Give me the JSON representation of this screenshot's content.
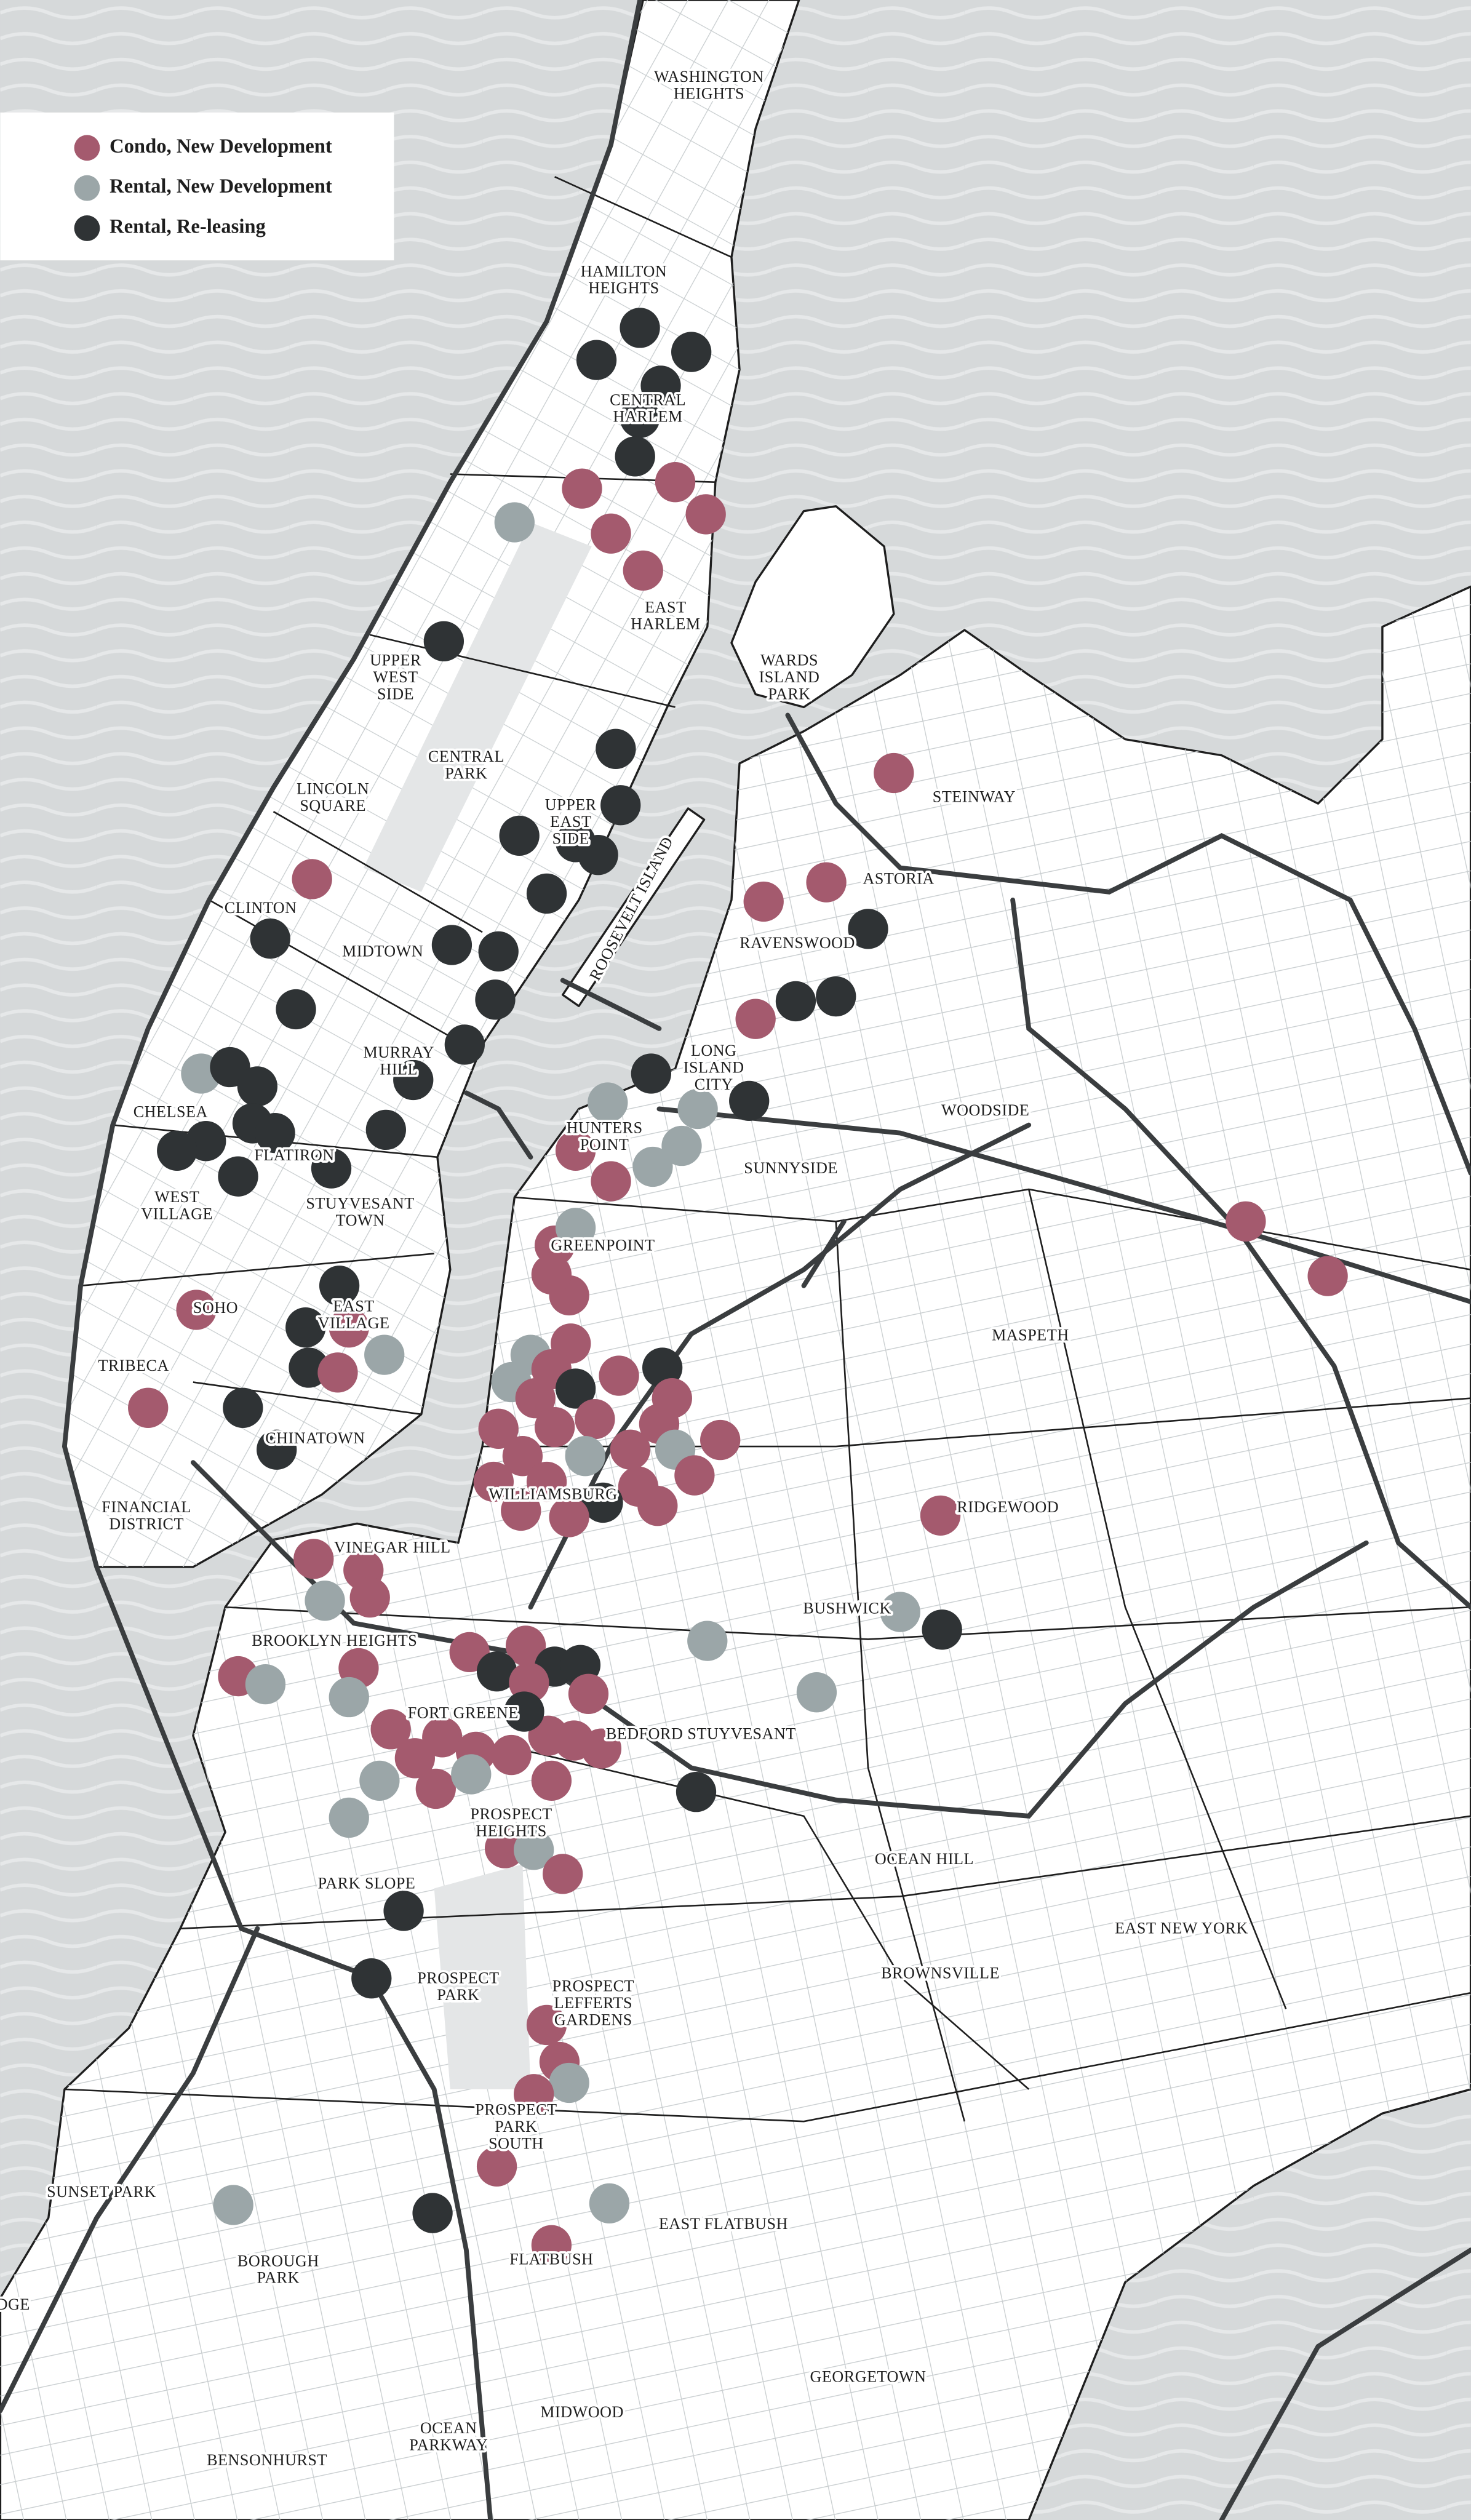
{
  "legend": [
    {
      "label": "Condo, New Development",
      "color": "#a45a6e"
    },
    {
      "label": "Rental, New Development",
      "color": "#9ba6a8"
    },
    {
      "label": "Rental, Re-leasing",
      "color": "#2f3335"
    }
  ],
  "neighborhoods": [
    [
      "WASHINGTON",
      "HEIGHTS"
    ],
    [
      "HAMILTON",
      "HEIGHTS"
    ],
    [
      "CENTRAL",
      "HARLEM"
    ],
    [
      "EAST",
      "HARLEM"
    ],
    [
      "UPPER",
      "WEST",
      "SIDE"
    ],
    [
      "CENTRAL",
      "PARK"
    ],
    [
      "WARDS",
      "ISLAND",
      "PARK"
    ],
    [
      "LINCOLN",
      "SQUARE"
    ],
    [
      "UPPER",
      "EAST",
      "SIDE"
    ],
    [
      "STEINWAY"
    ],
    [
      "ASTORIA"
    ],
    [
      "CLINTON"
    ],
    [
      "RAVENSWOOD"
    ],
    [
      "MIDTOWN"
    ],
    [
      "ROOSEVELT ISLAND"
    ],
    [
      "MURRAY",
      "HILL"
    ],
    [
      "LONG",
      "ISLAND",
      "CITY"
    ],
    [
      "CHELSEA"
    ],
    [
      "WOODSIDE"
    ],
    [
      "FLATIRON"
    ],
    [
      "HUNTERS",
      "POINT"
    ],
    [
      "SUNNYSIDE"
    ],
    [
      "WEST",
      "VILLAGE"
    ],
    [
      "STUYVESANT",
      "TOWN"
    ],
    [
      "GREENPOINT"
    ],
    [
      "SOHO"
    ],
    [
      "EAST",
      "VILLAGE"
    ],
    [
      "MASPETH"
    ],
    [
      "TRIBECA"
    ],
    [
      "CHINATOWN"
    ],
    [
      "WILLIAMSBURG"
    ],
    [
      "FINANCIAL",
      "DISTRICT"
    ],
    [
      "RIDGEWOOD"
    ],
    [
      "VINEGAR HILL"
    ],
    [
      "BUSHWICK"
    ],
    [
      "BROOKLYN HEIGHTS"
    ],
    [
      "FORT GREENE"
    ],
    [
      "BEDFORD STUYVESANT"
    ],
    [
      "PROSPECT",
      "HEIGHTS"
    ],
    [
      "OCEAN HILL"
    ],
    [
      "PARK SLOPE"
    ],
    [
      "EAST NEW YORK"
    ],
    [
      "PROSPECT",
      "PARK"
    ],
    [
      "BROWNSVILLE"
    ],
    [
      "PROSPECT",
      "LEFFERTS",
      "GARDENS"
    ],
    [
      "PROSPECT",
      "PARK",
      "SOUTH"
    ],
    [
      "SUNSET PARK"
    ],
    [
      "EAST FLATBUSH"
    ],
    [
      "BOROUGH",
      "PARK"
    ],
    [
      "FLATBUSH"
    ],
    [
      "DGE"
    ],
    [
      "GEORGETOWN"
    ],
    [
      "MIDWOOD"
    ],
    [
      "OCEAN",
      "PARKWAY"
    ],
    [
      "BENSONHURST"
    ]
  ]
}
